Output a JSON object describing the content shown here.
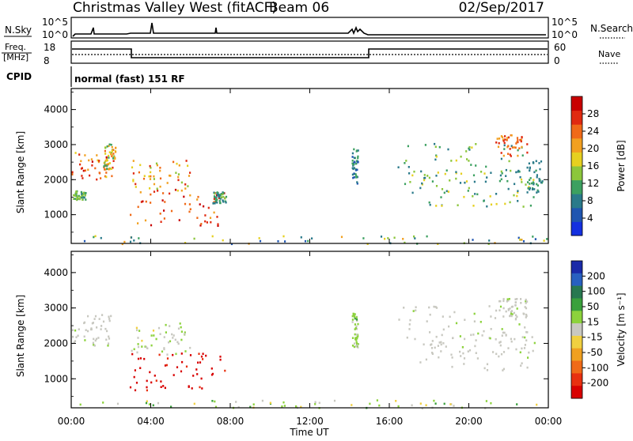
{
  "header": {
    "station": "Christmas Valley West (fitACF)",
    "beam": "Beam 06",
    "date": "02/Sep/2017"
  },
  "strip_nsky": {
    "label": "N.Sky",
    "ticks_left": [
      "10^5",
      "10^0"
    ],
    "right_label": "N.Search",
    "ticks_right": [
      "10^5",
      "10^0"
    ]
  },
  "strip_freq": {
    "label_line1": "Freq.",
    "label_line2": "[MHz]",
    "ticks_left": [
      "18",
      "8"
    ],
    "right_label": "Nave",
    "ticks_right": [
      "60",
      "0"
    ]
  },
  "cpid": {
    "label": "CPID",
    "text": "normal (fast) 151 RF"
  },
  "chart_data": [
    {
      "type": "heatmap",
      "name": "power",
      "ylabel": "Slant Range [km]",
      "xlabel": "Time UT",
      "ylim": [
        180,
        4600
      ],
      "xlim": [
        0,
        24
      ],
      "y_ticks": [
        "1000",
        "2000",
        "3000",
        "4000"
      ],
      "x_ticks": [
        "00:00",
        "04:00",
        "08:00",
        "12:00",
        "16:00",
        "20:00",
        "00:00"
      ],
      "colorbar": {
        "label": "Power [dB]",
        "ticks": [
          "4",
          "8",
          "12",
          "16",
          "20",
          "24",
          "28"
        ],
        "colors": [
          "#1430e0",
          "#1f55b0",
          "#2a7a8a",
          "#3ca060",
          "#8cc63c",
          "#e6d020",
          "#f2a020",
          "#f06a18",
          "#e02a10",
          "#c80000"
        ]
      },
      "scatter_regions": [
        {
          "t": [
            0.0,
            2.1
          ],
          "r": [
            1950,
            2850
          ],
          "level": [
            0.5,
            0.95
          ]
        },
        {
          "t": [
            0.0,
            0.7
          ],
          "r": [
            1450,
            1700
          ],
          "level": [
            0.25,
            0.5
          ]
        },
        {
          "t": [
            1.6,
            2.2
          ],
          "r": [
            2300,
            3100
          ],
          "level": [
            0.3,
            0.8
          ]
        },
        {
          "t": [
            3.0,
            6.0
          ],
          "r": [
            1700,
            2600
          ],
          "level": [
            0.45,
            0.85
          ]
        },
        {
          "t": [
            2.9,
            7.7
          ],
          "r": [
            700,
            1750
          ],
          "level": [
            0.6,
            0.97
          ]
        },
        {
          "t": [
            7.1,
            7.8
          ],
          "r": [
            1350,
            1700
          ],
          "level": [
            0.2,
            0.45
          ]
        },
        {
          "t": [
            14.1,
            14.4
          ],
          "r": [
            1900,
            2900
          ],
          "level": [
            0.15,
            0.4
          ]
        },
        {
          "t": [
            16.4,
            23.0
          ],
          "r": [
            1600,
            3100
          ],
          "level": [
            0.2,
            0.55
          ]
        },
        {
          "t": [
            17.5,
            23.4
          ],
          "r": [
            1250,
            2300
          ],
          "level": [
            0.2,
            0.6
          ]
        },
        {
          "t": [
            21.3,
            22.9
          ],
          "r": [
            2700,
            3300
          ],
          "level": [
            0.6,
            0.9
          ]
        },
        {
          "t": [
            22.9,
            23.7
          ],
          "r": [
            1650,
            2600
          ],
          "level": [
            0.2,
            0.4
          ]
        },
        {
          "t": [
            0.0,
            24.0
          ],
          "r": [
            190,
            420
          ],
          "level": [
            0.1,
            0.7
          ]
        }
      ]
    },
    {
      "type": "heatmap",
      "name": "velocity",
      "ylabel": "Slant Range [km]",
      "xlabel": "Time UT",
      "ylim": [
        180,
        4600
      ],
      "xlim": [
        0,
        24
      ],
      "y_ticks": [
        "1000",
        "2000",
        "3000",
        "4000"
      ],
      "x_ticks": [
        "00:00",
        "04:00",
        "08:00",
        "12:00",
        "16:00",
        "20:00",
        "00:00"
      ],
      "colorbar": {
        "label": "Velocity [m s⁻¹]",
        "ticks": [
          "200",
          "100",
          "50",
          "15",
          "-15",
          "-50",
          "-100",
          "-200"
        ],
        "colors": [
          "#1a2aa8",
          "#2860c0",
          "#287850",
          "#3aa03c",
          "#8cd23c",
          "#c8c8c0",
          "#f0d040",
          "#f0a020",
          "#f06a18",
          "#e83010",
          "#d80000"
        ]
      },
      "scatter_regions": [
        {
          "t": [
            0.0,
            2.1
          ],
          "r": [
            1950,
            2850
          ],
          "level": [
            0.45,
            0.5
          ]
        },
        {
          "t": [
            3.0,
            6.0
          ],
          "r": [
            1700,
            2600
          ],
          "level": [
            0.4,
            0.55
          ]
        },
        {
          "t": [
            2.9,
            7.7
          ],
          "r": [
            700,
            1750
          ],
          "level": [
            0.9,
            0.95
          ]
        },
        {
          "t": [
            14.1,
            14.4
          ],
          "r": [
            1900,
            2900
          ],
          "level": [
            0.35,
            0.5
          ]
        },
        {
          "t": [
            16.4,
            23.0
          ],
          "r": [
            1600,
            3100
          ],
          "level": [
            0.45,
            0.5
          ]
        },
        {
          "t": [
            17.5,
            23.4
          ],
          "r": [
            1250,
            2300
          ],
          "level": [
            0.45,
            0.5
          ]
        },
        {
          "t": [
            21.3,
            22.9
          ],
          "r": [
            2700,
            3300
          ],
          "level": [
            0.45,
            0.5
          ]
        },
        {
          "t": [
            0.0,
            24.0
          ],
          "r": [
            190,
            420
          ],
          "level": [
            0.3,
            0.6
          ]
        }
      ]
    }
  ]
}
